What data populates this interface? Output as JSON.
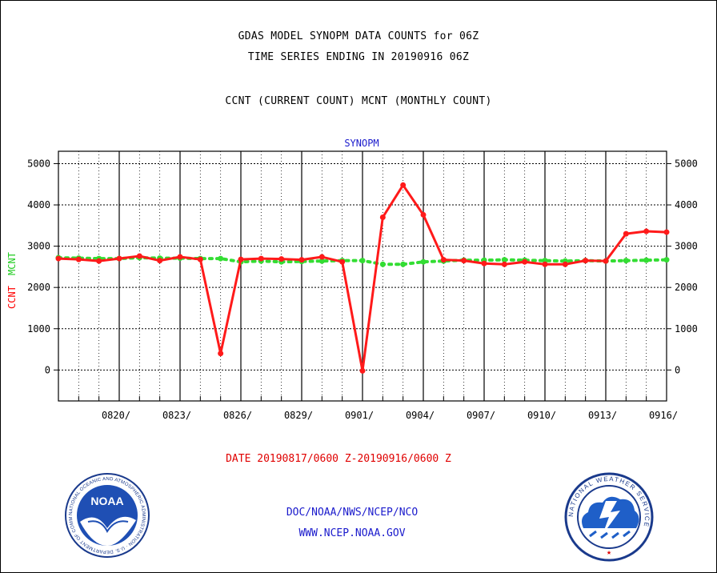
{
  "header": {
    "title_line1": "GDAS MODEL SYNOPM DATA COUNTS for 06Z",
    "title_line2": "TIME SERIES ENDING IN 20190916 06Z",
    "subtitle": "CCNT (CURRENT COUNT) MCNT (MONTHLY COUNT)"
  },
  "footer": {
    "date_range": "DATE 20190817/0600 Z-20190916/0600 Z",
    "org_path": "DOC/NOAA/NWS/NCEP/NCO",
    "url": "WWW.NCEP.NOAA.GOV"
  },
  "logos": {
    "noaa_text": "NOAA",
    "noaa_ring": "NATIONAL OCEANIC AND ATMOSPHERIC ADMINISTRATION · U.S. DEPARTMENT OF COMMERCE",
    "nws_ring": "NATIONAL WEATHER SERVICE"
  },
  "colors": {
    "ccnt": "#ff1a1a",
    "mcnt": "#33dd33",
    "plot_title": "#1a1acc",
    "ylabel_ccnt": "#ff0000",
    "ylabel_mcnt": "#22cc22"
  },
  "chart_data": {
    "type": "line",
    "title": "SYNOPM",
    "ylabel_ccnt": "CCNT",
    "ylabel_mcnt": "MCNT",
    "ylim": [
      -750,
      5300
    ],
    "yticks": [
      0,
      1000,
      2000,
      3000,
      4000,
      5000
    ],
    "xlim": [
      0,
      30
    ],
    "xticks": [
      {
        "x": 3,
        "label": "0820/"
      },
      {
        "x": 6,
        "label": "0823/"
      },
      {
        "x": 9,
        "label": "0826/"
      },
      {
        "x": 12,
        "label": "0829/"
      },
      {
        "x": 15,
        "label": "0901/"
      },
      {
        "x": 18,
        "label": "0904/"
      },
      {
        "x": 21,
        "label": "0907/"
      },
      {
        "x": 24,
        "label": "0910/"
      },
      {
        "x": 27,
        "label": "0913/"
      },
      {
        "x": 30,
        "label": "0916/"
      }
    ],
    "grid": true,
    "series": [
      {
        "name": "CCNT",
        "x": [
          0,
          1,
          2,
          3,
          4,
          5,
          6,
          7,
          8,
          9,
          10,
          11,
          12,
          13,
          14,
          15,
          16,
          17,
          18,
          19,
          20,
          21,
          22,
          23,
          24,
          25,
          26,
          27,
          28,
          29,
          30
        ],
        "values": [
          2700,
          2680,
          2640,
          2700,
          2760,
          2650,
          2740,
          2680,
          400,
          2680,
          2700,
          2690,
          2670,
          2740,
          2620,
          -20,
          3700,
          4480,
          3760,
          2670,
          2650,
          2580,
          2560,
          2620,
          2560,
          2560,
          2650,
          2640,
          3300,
          3360,
          3340
        ]
      },
      {
        "name": "MCNT",
        "x": [
          0,
          1,
          2,
          3,
          4,
          5,
          6,
          7,
          8,
          9,
          10,
          11,
          12,
          13,
          14,
          15,
          16,
          17,
          18,
          19,
          20,
          21,
          22,
          23,
          24,
          25,
          26,
          27,
          28,
          29,
          30
        ],
        "values": [
          2720,
          2710,
          2700,
          2700,
          2720,
          2710,
          2710,
          2700,
          2700,
          2620,
          2640,
          2620,
          2630,
          2640,
          2650,
          2650,
          2560,
          2560,
          2620,
          2640,
          2660,
          2660,
          2670,
          2660,
          2650,
          2640,
          2650,
          2640,
          2650,
          2660,
          2670
        ]
      }
    ]
  }
}
